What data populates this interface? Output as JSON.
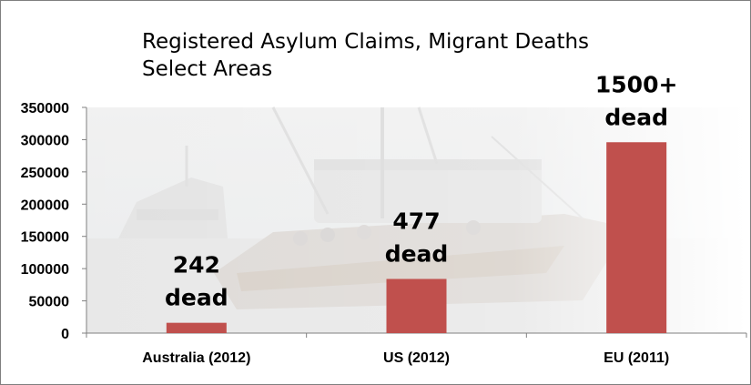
{
  "chart_data": {
    "type": "bar",
    "title": [
      "Registered Asylum Claims, Migrant Deaths",
      "Select Areas"
    ],
    "categories": [
      "Australia (2012)",
      "US (2012)",
      "EU (2011)"
    ],
    "values": [
      16000,
      84000,
      296000
    ],
    "ylim": [
      0,
      350000
    ],
    "yticks": [
      0,
      50000,
      100000,
      150000,
      200000,
      250000,
      300000,
      350000
    ],
    "annotations": [
      [
        "242",
        "dead"
      ],
      [
        "477",
        "dead"
      ],
      [
        "1500+",
        "dead"
      ]
    ],
    "bar_color": "#c0504d",
    "grid": false,
    "background": "faded photo of a migrant boat"
  }
}
